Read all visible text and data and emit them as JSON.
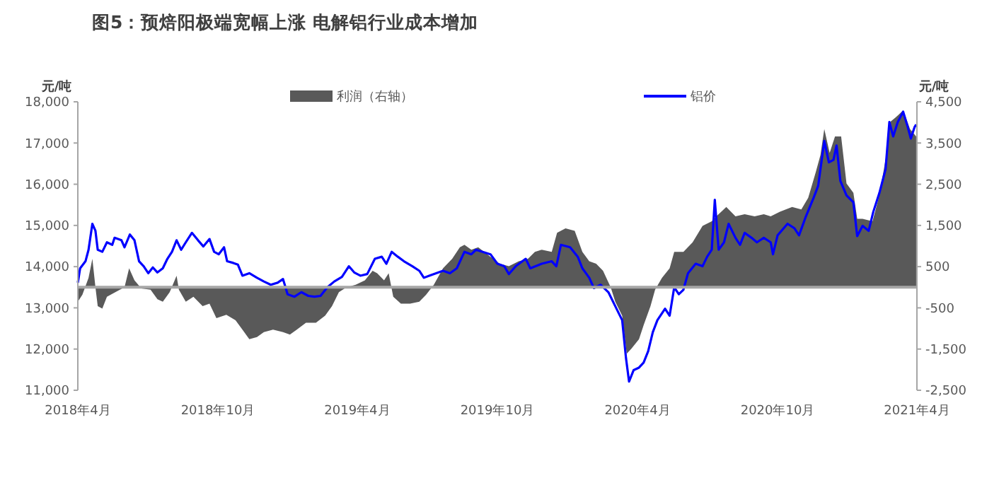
{
  "chart_data": {
    "type": "line",
    "title": "图5：预焙阳极端宽幅上涨 电解铝行业成本增加",
    "ylabel": "元/吨",
    "y2label": "元/吨",
    "xlim": [
      "2018-04-01",
      "2021-04-01"
    ],
    "xticks": [
      {
        "value": "2018-04-01",
        "label": "2018年4月"
      },
      {
        "value": "2018-10-01",
        "label": "2018年10月"
      },
      {
        "value": "2019-04-01",
        "label": "2019年4月"
      },
      {
        "value": "2019-10-01",
        "label": "2019年10月"
      },
      {
        "value": "2020-04-01",
        "label": "2020年4月"
      },
      {
        "value": "2020-10-01",
        "label": "2020年10月"
      },
      {
        "value": "2021-04-01",
        "label": "2021年4月"
      }
    ],
    "ylim": [
      11000,
      18000
    ],
    "yticks": [
      {
        "value": 11000,
        "label": "11,000"
      },
      {
        "value": 12000,
        "label": "12,000"
      },
      {
        "value": 13000,
        "label": "13,000"
      },
      {
        "value": 14000,
        "label": "14,000"
      },
      {
        "value": 15000,
        "label": "15,000"
      },
      {
        "value": 16000,
        "label": "16,000"
      },
      {
        "value": 17000,
        "label": "17,000"
      },
      {
        "value": 18000,
        "label": "18,000"
      }
    ],
    "y2lim": [
      -2500,
      4500
    ],
    "y2ticks": [
      {
        "value": -2500,
        "label": "-2,500"
      },
      {
        "value": -1500,
        "label": "-1,500"
      },
      -500,
      500,
      {
        "value": 1500,
        "label": "1,500"
      },
      {
        "value": 2500,
        "label": "2,500"
      },
      {
        "value": 3500,
        "label": "3,500"
      },
      {
        "value": 4500,
        "label": "4,500"
      }
    ],
    "ref_lines": [
      {
        "axis": "y2",
        "value": 0,
        "color": "#a6a6a6"
      }
    ],
    "legend": "top",
    "grid": false,
    "series": [
      {
        "name": "利润（右轴）",
        "type": "area",
        "axis": "y2",
        "color": "#595959",
        "x": [
          "2018-04-01",
          "2018-04-07",
          "2018-04-15",
          "2018-04-20",
          "2018-04-24",
          "2018-04-27",
          "2018-05-03",
          "2018-05-09",
          "2018-05-20",
          "2018-06-01",
          "2018-06-07",
          "2018-06-14",
          "2018-06-23",
          "2018-07-05",
          "2018-07-14",
          "2018-07-21",
          "2018-07-30",
          "2018-08-08",
          "2018-08-11",
          "2018-08-20",
          "2018-08-30",
          "2018-09-11",
          "2018-09-20",
          "2018-09-29",
          "2018-10-12",
          "2018-10-24",
          "2018-11-02",
          "2018-11-11",
          "2018-11-21",
          "2018-11-30",
          "2018-12-12",
          "2018-12-25",
          "2019-01-03",
          "2019-01-12",
          "2019-01-24",
          "2019-02-06",
          "2019-02-18",
          "2019-02-27",
          "2019-03-08",
          "2019-03-18",
          "2019-03-30",
          "2019-04-11",
          "2019-04-21",
          "2019-04-27",
          "2019-05-06",
          "2019-05-12",
          "2019-05-18",
          "2019-05-28",
          "2019-06-09",
          "2019-06-21",
          "2019-06-30",
          "2019-07-10",
          "2019-07-22",
          "2019-08-03",
          "2019-08-13",
          "2019-08-19",
          "2019-08-28",
          "2019-09-06",
          "2019-09-22",
          "2019-10-04",
          "2019-10-16",
          "2019-10-29",
          "2019-11-10",
          "2019-11-19",
          "2019-11-28",
          "2019-12-11",
          "2019-12-18",
          "2019-12-29",
          "2020-01-10",
          "2020-01-20",
          "2020-01-29",
          "2020-02-07",
          "2020-02-16",
          "2020-02-26",
          "2020-03-03",
          "2020-03-12",
          "2020-03-18",
          "2020-03-24",
          "2020-04-03",
          "2020-04-09",
          "2020-04-18",
          "2020-04-24",
          "2020-05-03",
          "2020-05-13",
          "2020-05-19",
          "2020-05-31",
          "2020-06-12",
          "2020-06-25",
          "2020-07-07",
          "2020-07-13",
          "2020-07-26",
          "2020-08-07",
          "2020-08-19",
          "2020-09-01",
          "2020-09-13",
          "2020-09-22",
          "2020-10-04",
          "2020-10-20",
          "2020-11-01",
          "2020-11-10",
          "2020-11-20",
          "2020-11-26",
          "2020-12-01",
          "2020-12-08",
          "2020-12-15",
          "2020-12-23",
          "2020-12-30",
          "2021-01-08",
          "2021-01-13",
          "2021-01-20",
          "2021-02-02",
          "2021-02-11",
          "2021-02-20",
          "2021-02-25",
          "2021-03-04",
          "2021-03-14",
          "2021-03-23",
          "2021-03-31"
        ],
        "values": [
          -350,
          -180,
          230,
          690,
          0,
          -460,
          -520,
          -230,
          -120,
          0,
          460,
          170,
          -30,
          -60,
          -290,
          -350,
          -120,
          280,
          -60,
          -350,
          -230,
          -460,
          -400,
          -750,
          -670,
          -800,
          -1030,
          -1260,
          -1210,
          -1090,
          -1030,
          -1090,
          -1150,
          -1030,
          -860,
          -860,
          -690,
          -460,
          -120,
          0,
          60,
          170,
          400,
          340,
          170,
          340,
          -230,
          -400,
          -400,
          -350,
          -180,
          60,
          460,
          690,
          970,
          1030,
          910,
          970,
          740,
          570,
          510,
          630,
          690,
          860,
          910,
          860,
          1320,
          1430,
          1370,
          860,
          630,
          570,
          400,
          0,
          -350,
          -690,
          -1610,
          -1490,
          -1260,
          -920,
          -460,
          -60,
          230,
          460,
          860,
          860,
          1090,
          1490,
          1600,
          1720,
          1950,
          1720,
          1770,
          1720,
          1770,
          1720,
          1830,
          1950,
          1890,
          2170,
          2800,
          3210,
          3840,
          3260,
          3660,
          3660,
          2520,
          2290,
          1660,
          1660,
          1600,
          2230,
          3210,
          4010,
          4120,
          4290,
          3840,
          3660
        ]
      },
      {
        "name": "铝价",
        "color": "#0000ff",
        "x": [
          "2018-04-01",
          "2018-04-04",
          "2018-04-11",
          "2018-04-15",
          "2018-04-20",
          "2018-04-24",
          "2018-04-27",
          "2018-05-03",
          "2018-05-09",
          "2018-05-16",
          "2018-05-19",
          "2018-05-28",
          "2018-06-01",
          "2018-06-08",
          "2018-06-14",
          "2018-06-20",
          "2018-06-26",
          "2018-07-02",
          "2018-07-08",
          "2018-07-14",
          "2018-07-21",
          "2018-07-27",
          "2018-08-02",
          "2018-08-08",
          "2018-08-14",
          "2018-08-20",
          "2018-08-28",
          "2018-09-05",
          "2018-09-12",
          "2018-09-20",
          "2018-09-26",
          "2018-10-02",
          "2018-10-09",
          "2018-10-13",
          "2018-10-21",
          "2018-10-27",
          "2018-11-02",
          "2018-11-11",
          "2018-11-21",
          "2018-11-30",
          "2018-12-09",
          "2018-12-18",
          "2018-12-25",
          "2018-12-31",
          "2019-01-09",
          "2019-01-18",
          "2019-01-27",
          "2019-02-04",
          "2019-02-12",
          "2019-02-21",
          "2019-03-02",
          "2019-03-12",
          "2019-03-21",
          "2019-03-28",
          "2019-04-05",
          "2019-04-14",
          "2019-04-24",
          "2019-05-03",
          "2019-05-09",
          "2019-05-16",
          "2019-05-24",
          "2019-06-01",
          "2019-06-12",
          "2019-06-21",
          "2019-06-27",
          "2019-07-04",
          "2019-07-13",
          "2019-07-22",
          "2019-07-31",
          "2019-08-09",
          "2019-08-19",
          "2019-08-28",
          "2019-09-03",
          "2019-09-22",
          "2019-10-01",
          "2019-10-10",
          "2019-10-16",
          "2019-10-25",
          "2019-11-07",
          "2019-11-13",
          "2019-11-28",
          "2019-12-11",
          "2019-12-17",
          "2019-12-23",
          "2020-01-04",
          "2020-01-14",
          "2020-01-20",
          "2020-01-29",
          "2020-02-04",
          "2020-02-13",
          "2020-02-23",
          "2020-03-03",
          "2020-03-12",
          "2020-03-17",
          "2020-03-21",
          "2020-03-27",
          "2020-04-03",
          "2020-04-09",
          "2020-04-15",
          "2020-04-21",
          "2020-04-27",
          "2020-05-07",
          "2020-05-13",
          "2020-05-19",
          "2020-05-25",
          "2020-05-31",
          "2020-06-06",
          "2020-06-16",
          "2020-06-25",
          "2020-07-01",
          "2020-07-07",
          "2020-07-11",
          "2020-07-16",
          "2020-07-23",
          "2020-07-29",
          "2020-08-07",
          "2020-08-13",
          "2020-08-19",
          "2020-08-28",
          "2020-09-04",
          "2020-09-13",
          "2020-09-22",
          "2020-09-25",
          "2020-10-01",
          "2020-10-14",
          "2020-10-23",
          "2020-10-29",
          "2020-11-07",
          "2020-11-17",
          "2020-11-23",
          "2020-12-01",
          "2020-12-07",
          "2020-12-13",
          "2020-12-17",
          "2020-12-22",
          "2020-12-30",
          "2021-01-08",
          "2021-01-13",
          "2021-01-20",
          "2021-01-28",
          "2021-02-03",
          "2021-02-11",
          "2021-02-19",
          "2021-02-24",
          "2021-03-01",
          "2021-03-07",
          "2021-03-14",
          "2021-03-20",
          "2021-03-24",
          "2021-03-29",
          "2021-03-31"
        ],
        "values": [
          13610,
          13960,
          14130,
          14410,
          15040,
          14870,
          14410,
          14360,
          14590,
          14530,
          14700,
          14640,
          14470,
          14780,
          14640,
          14130,
          14010,
          13840,
          13980,
          13860,
          13960,
          14190,
          14360,
          14640,
          14410,
          14590,
          14820,
          14640,
          14490,
          14670,
          14360,
          14300,
          14470,
          14130,
          14090,
          14050,
          13780,
          13840,
          13730,
          13640,
          13560,
          13610,
          13700,
          13330,
          13270,
          13380,
          13290,
          13270,
          13290,
          13500,
          13640,
          13750,
          14010,
          13860,
          13780,
          13820,
          14190,
          14240,
          14070,
          14360,
          14240,
          14130,
          14010,
          13900,
          13730,
          13780,
          13840,
          13900,
          13840,
          13960,
          14360,
          14300,
          14410,
          14300,
          14070,
          14010,
          13820,
          14010,
          14190,
          13960,
          14070,
          14130,
          14010,
          14530,
          14470,
          14240,
          13960,
          13730,
          13480,
          13560,
          13380,
          13040,
          12700,
          11780,
          11210,
          11490,
          11550,
          11670,
          11950,
          12410,
          12700,
          12980,
          12810,
          13500,
          13330,
          13440,
          13840,
          14070,
          14010,
          14240,
          14410,
          15620,
          14410,
          14590,
          15040,
          14700,
          14530,
          14820,
          14700,
          14590,
          14700,
          14590,
          14300,
          14760,
          15040,
          14930,
          14760,
          15220,
          15670,
          15960,
          17050,
          16530,
          16590,
          16940,
          16080,
          15730,
          15560,
          14740,
          14990,
          14870,
          15330,
          15790,
          16360,
          17510,
          17160,
          17510,
          17760,
          17390,
          17110,
          17390,
          17450
        ]
      }
    ]
  }
}
